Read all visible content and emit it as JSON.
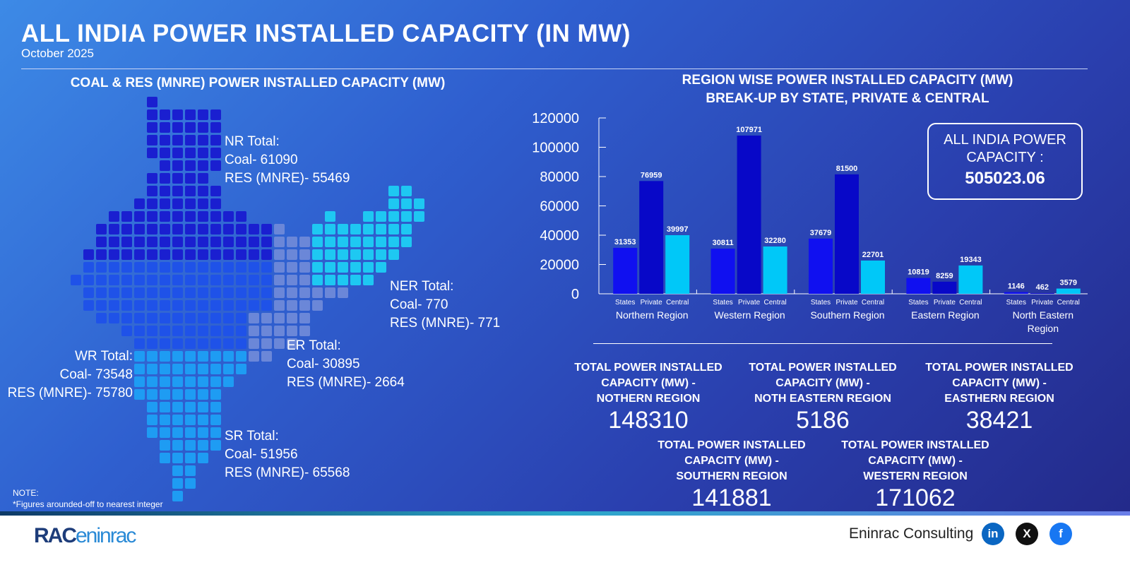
{
  "header": {
    "title": "ALL INDIA POWER INSTALLED CAPACITY (IN MW)",
    "subtitle": "October 2025"
  },
  "map_section": {
    "title": "COAL & RES (MNRE) POWER INSTALLED CAPACITY (MW)",
    "regions": [
      {
        "name": "NR Total:",
        "coal": "Coal- 61090",
        "res": "RES (MNRE)- 55469",
        "color": "#1a1fd0"
      },
      {
        "name": "NER Total:",
        "coal": "Coal- 770",
        "res": "RES (MNRE)- 771",
        "color": "#1ec8f2"
      },
      {
        "name": "ER Total:",
        "coal": "Coal- 30895",
        "res": "RES (MNRE)- 2664",
        "color": "#6b87d8"
      },
      {
        "name": "WR Total:",
        "coal": "Coal- 73548",
        "res": "RES (MNRE)- 75780",
        "color": "#1f52e8"
      },
      {
        "name": "SR Total:",
        "coal": "Coal- 51956",
        "res": "RES (MNRE)- 65568",
        "color": "#1e9cf3"
      }
    ],
    "note_title": "NOTE:",
    "note": "*Figures arounded-off to nearest integer"
  },
  "chart_section": {
    "title1": "REGION WISE POWER INSTALLED CAPACITY (MW)",
    "title2": "BREAK-UP BY STATE, PRIVATE & CENTRAL"
  },
  "chart_data": {
    "type": "bar",
    "categories": [
      "Northern Region",
      "Western Region",
      "Southern Region",
      "Eastern Region",
      "North Eastern Region"
    ],
    "series": [
      {
        "name": "States",
        "values": [
          31353,
          30811,
          37679,
          10819,
          1146
        ],
        "color": "#1010f0"
      },
      {
        "name": "Private",
        "values": [
          76959,
          107971,
          81500,
          8259,
          462
        ],
        "color": "#0808c8"
      },
      {
        "name": "Central",
        "values": [
          39997,
          32280,
          22701,
          19343,
          3579
        ],
        "color": "#00c8f8"
      }
    ],
    "ylim": [
      0,
      120000
    ],
    "yticks": [
      0,
      20000,
      40000,
      60000,
      80000,
      100000,
      120000
    ],
    "grid": false,
    "legend": "none"
  },
  "capacity_box": {
    "label1": "ALL INDIA POWER",
    "label2": "CAPACITY :",
    "value": "505023.06"
  },
  "totals": [
    {
      "title": [
        "TOTAL POWER INSTALLED",
        "CAPACITY (MW) -",
        "NOTHERN REGION"
      ],
      "value": "148310"
    },
    {
      "title": [
        "TOTAL POWER INSTALLED",
        "CAPACITY (MW) -",
        "NOTH EASTERN REGION"
      ],
      "value": "5186"
    },
    {
      "title": [
        "TOTAL POWER INSTALLED",
        "CAPACITY (MW) -",
        "EASTHERN REGION"
      ],
      "value": "38421"
    },
    {
      "title": [
        "TOTAL POWER INSTALLED",
        "CAPACITY (MW) -",
        "SOUTHERN REGION"
      ],
      "value": "141881"
    },
    {
      "title": [
        "TOTAL POWER INSTALLED",
        "CAPACITY (MW) -",
        "WESTERN REGION"
      ],
      "value": "171062"
    }
  ],
  "footer": {
    "logo_a": "RAC",
    "logo_b": "eninrac",
    "brand": "Eninrac Consulting",
    "social": [
      {
        "icon": "linkedin-icon",
        "glyph": "in",
        "color": "#0a66c2"
      },
      {
        "icon": "x-icon",
        "glyph": "X",
        "color": "#111111"
      },
      {
        "icon": "facebook-icon",
        "glyph": "f",
        "color": "#1877f2"
      }
    ]
  }
}
